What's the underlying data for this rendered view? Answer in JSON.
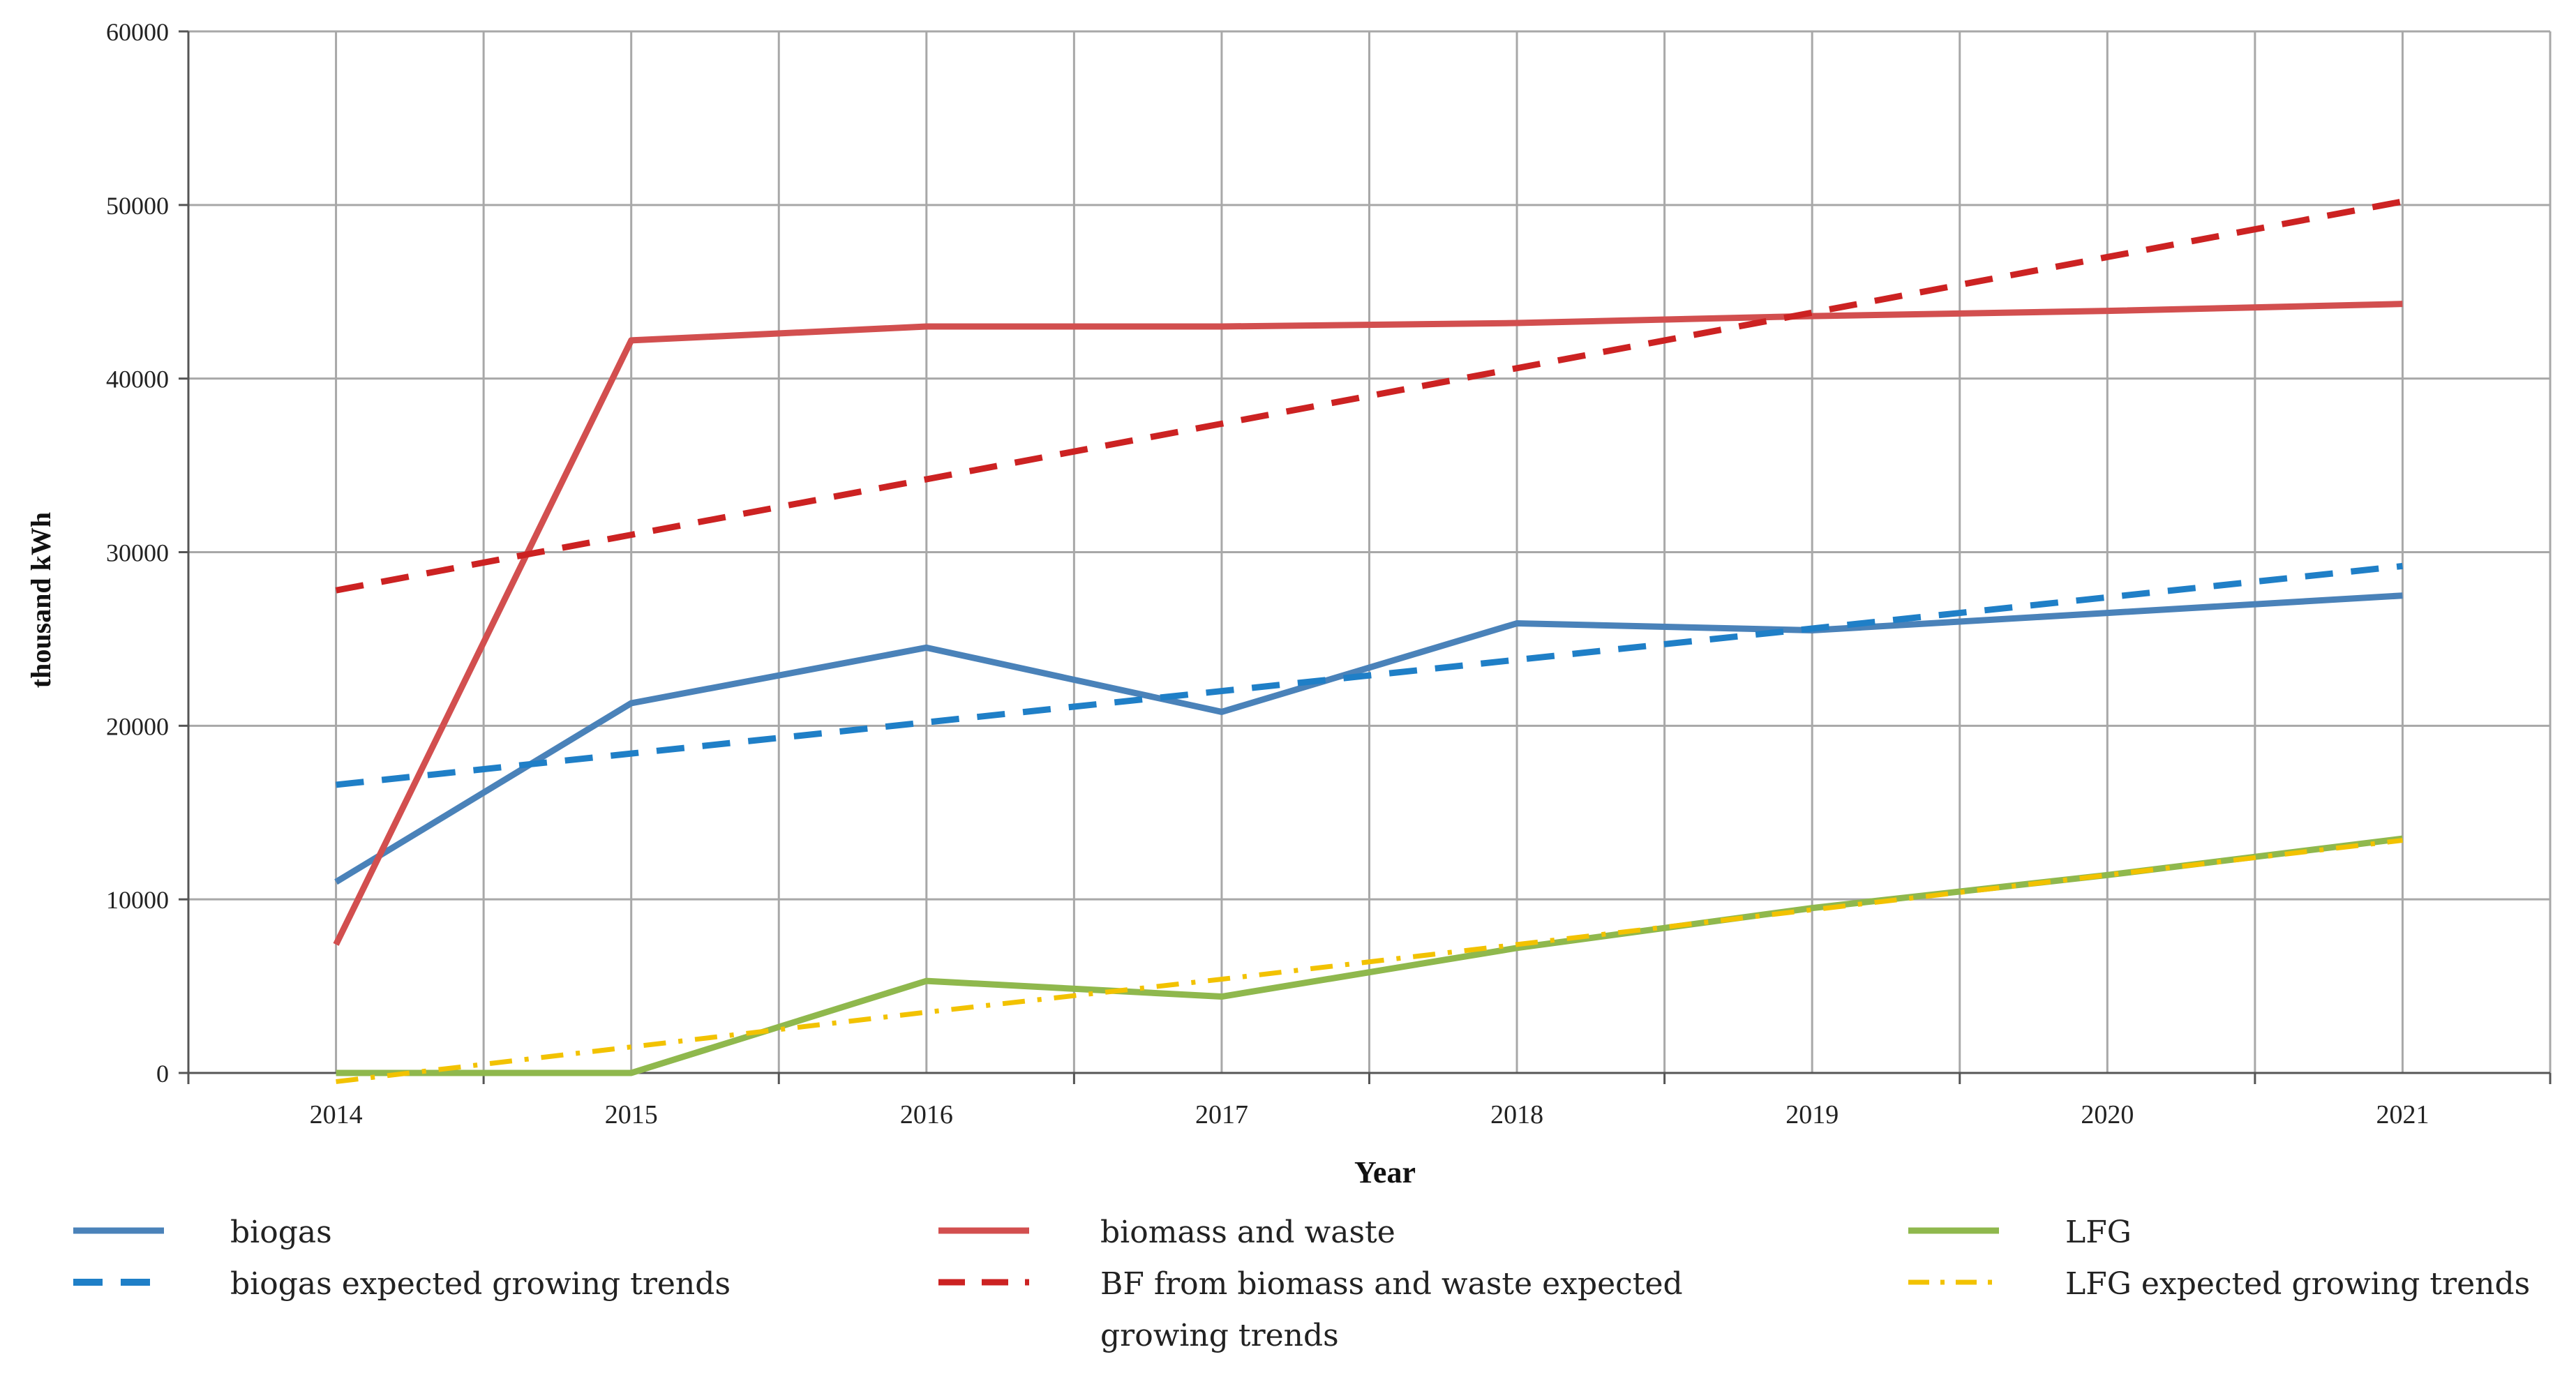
{
  "chart_data": {
    "type": "line",
    "title": "",
    "xlabel": "Year",
    "ylabel": "thousand kWh",
    "x": [
      2014,
      2015,
      2016,
      2017,
      2018,
      2019,
      2020,
      2021
    ],
    "x_tick_labels": [
      "2014",
      "2015",
      "2016",
      "2017",
      "2018",
      "2019",
      "2020",
      "2021"
    ],
    "ylim": [
      0,
      60000
    ],
    "y_ticks": [
      0,
      10000,
      20000,
      30000,
      40000,
      50000,
      60000
    ],
    "y_tick_labels": [
      "0",
      "10000",
      "20000",
      "30000",
      "40000",
      "50000",
      "60000"
    ],
    "grid": true,
    "legend_position": "bottom",
    "series": [
      {
        "name": "biogas",
        "style": "solid",
        "color": "#4a82b9",
        "values": [
          11000,
          21300,
          24500,
          20800,
          25900,
          25500,
          26500,
          27500
        ]
      },
      {
        "name": "biomass and waste",
        "style": "solid",
        "color": "#d24f4f",
        "values": [
          7400,
          42200,
          43000,
          43000,
          43200,
          43600,
          43900,
          44300
        ]
      },
      {
        "name": "LFG",
        "style": "solid",
        "color": "#8fb84d",
        "values": [
          0,
          0,
          5300,
          4400,
          7200,
          9500,
          11400,
          13500
        ]
      },
      {
        "name": "biogas expected growing trends",
        "style": "dashed",
        "color": "#1f7fc7",
        "values": [
          16600,
          18400,
          20200,
          22000,
          23800,
          25600,
          27400,
          29200
        ]
      },
      {
        "name": "BF from biomass and waste expected growing trends",
        "style": "dashed",
        "color": "#cc2222",
        "values": [
          27800,
          31000,
          34200,
          37400,
          40600,
          43800,
          47000,
          50200
        ]
      },
      {
        "name": "LFG expected growing trends",
        "style": "dashdot",
        "color": "#f2c200",
        "values": [
          -500,
          1500,
          3500,
          5400,
          7400,
          9400,
          11400,
          13400
        ]
      }
    ]
  },
  "legend": {
    "items": [
      {
        "label": "biogas"
      },
      {
        "label": "biogas expected growing trends"
      },
      {
        "label": "biomass and waste"
      },
      {
        "label": "BF from biomass and waste expected growing trends"
      },
      {
        "label": "LFG"
      },
      {
        "label": "LFG expected growing trends"
      }
    ]
  }
}
